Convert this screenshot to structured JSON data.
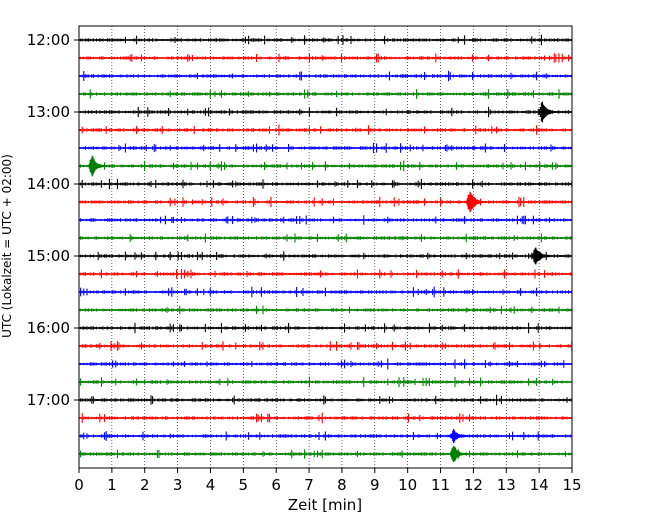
{
  "chart_data": {
    "type": "line",
    "title": "",
    "xlabel": "Zeit  [min]",
    "ylabel": "UTC (Lokalzeit = UTC + 02:00)",
    "xlim": [
      0,
      15
    ],
    "x_ticks": [
      "0",
      "1",
      "2",
      "3",
      "4",
      "5",
      "6",
      "7",
      "8",
      "9",
      "10",
      "11",
      "12",
      "13",
      "14",
      "15"
    ],
    "y_tick_labels": [
      "12:00",
      "13:00",
      "14:00",
      "15:00",
      "16:00",
      "17:00"
    ],
    "row_interval_minutes": 15,
    "grid": "vertical dotted",
    "series_color_cycle": [
      "#000000",
      "#ff0000",
      "#0000ff",
      "#008000"
    ],
    "traces": [
      {
        "start": "12:00",
        "events": []
      },
      {
        "start": "12:15",
        "events": []
      },
      {
        "start": "12:30",
        "events": []
      },
      {
        "start": "12:45",
        "events": []
      },
      {
        "start": "13:00",
        "events": [
          {
            "x": 14.1,
            "amplitude": 1.0
          }
        ]
      },
      {
        "start": "13:15",
        "events": []
      },
      {
        "start": "13:30",
        "events": []
      },
      {
        "start": "13:45",
        "events": [
          {
            "x": 0.4,
            "amplitude": 0.95
          }
        ]
      },
      {
        "start": "14:00",
        "events": []
      },
      {
        "start": "14:15",
        "events": [
          {
            "x": 11.9,
            "amplitude": 1.1
          }
        ]
      },
      {
        "start": "14:30",
        "events": []
      },
      {
        "start": "14:45",
        "events": []
      },
      {
        "start": "15:00",
        "events": [
          {
            "x": 13.9,
            "amplitude": 0.85
          }
        ]
      },
      {
        "start": "15:15",
        "events": []
      },
      {
        "start": "15:30",
        "events": []
      },
      {
        "start": "15:45",
        "events": []
      },
      {
        "start": "16:00",
        "events": []
      },
      {
        "start": "16:15",
        "events": []
      },
      {
        "start": "16:30",
        "events": []
      },
      {
        "start": "16:45",
        "events": []
      },
      {
        "start": "17:00",
        "events": []
      },
      {
        "start": "17:15",
        "events": []
      },
      {
        "start": "17:30",
        "events": [
          {
            "x": 11.4,
            "amplitude": 0.6
          }
        ]
      },
      {
        "start": "17:45",
        "events": [
          {
            "x": 11.4,
            "amplitude": 0.8
          }
        ]
      }
    ]
  }
}
